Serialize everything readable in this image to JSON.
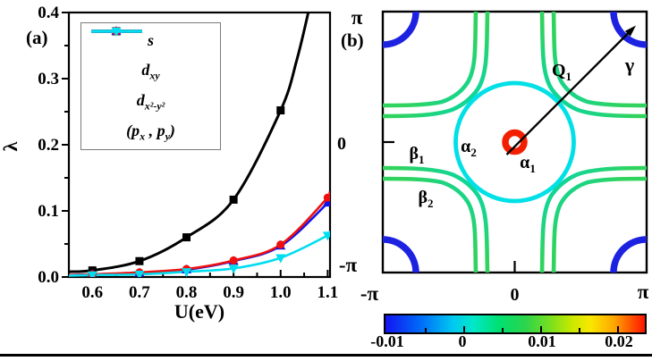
{
  "figure": {
    "panel_a": {
      "tag": "(a)",
      "x_axis_label": "U(eV)",
      "y_axis_label": "λ"
    },
    "panel_b": {
      "tag": "(b)",
      "y_tick_labels": {
        "top": "π",
        "center": "0",
        "bottom": "-π"
      },
      "x_tick_labels": {
        "left": "-π",
        "center": "0",
        "right": "π"
      },
      "annotations": {
        "alpha1": {
          "base": "α",
          "sub": "1"
        },
        "alpha2": {
          "base": "α",
          "sub": "2"
        },
        "beta1": {
          "base": "β",
          "sub": "1"
        },
        "beta2": {
          "base": "β",
          "sub": "2"
        },
        "q1": {
          "base": "Q",
          "sub": "1"
        },
        "gamma": "γ"
      },
      "colorbar": {
        "labels": [
          "-0.01",
          "0",
          "0.01",
          "0.02"
        ]
      }
    }
  },
  "chart_data": [
    {
      "type": "line",
      "title": "(a) pairing strength vs interaction",
      "xlabel": "U(eV)",
      "ylabel": "λ",
      "xlim": [
        0.55,
        1.105
      ],
      "ylim": [
        0,
        0.4
      ],
      "x_tick_values": [
        0.6,
        0.7,
        0.8,
        0.9,
        1.0,
        1.1
      ],
      "x_tick_labels": [
        "0.6",
        "0.7",
        "0.8",
        "0.9",
        "1.0",
        "1.1"
      ],
      "y_tick_values": [
        0,
        0.1,
        0.2,
        0.3,
        0.4
      ],
      "y_tick_labels": [
        "0.0",
        "0.1",
        "0.2",
        "0.3",
        "0.4"
      ],
      "x_minor_ticks": [
        0.65,
        0.75,
        0.85,
        0.95,
        1.05
      ],
      "y_minor_ticks": [
        0.05,
        0.15,
        0.25,
        0.35
      ],
      "grid": false,
      "legend_position": "top-left",
      "series": [
        {
          "name": "s",
          "color": "#000000",
          "marker": "square",
          "line_width": 3,
          "label_segments": [
            {
              "t": "s"
            }
          ],
          "points": [
            [
              0.6,
              0.01
            ],
            [
              0.7,
              0.024
            ],
            [
              0.8,
              0.06
            ],
            [
              0.9,
              0.117
            ],
            [
              1.0,
              0.252
            ]
          ],
          "lead_in": [
            [
              0.55,
              0.008
            ]
          ],
          "tail": [
            [
              1.035,
              0.33
            ],
            [
              1.062,
              0.41
            ]
          ],
          "note": "curve exceeds 0.4 near U=1.06"
        },
        {
          "name": "d_xy",
          "color": "#1212e8",
          "marker": "triangle-up",
          "line_width": 2.6,
          "label_segments": [
            {
              "t": "d"
            },
            {
              "t": "xy",
              "sub": true
            }
          ],
          "points": [
            [
              0.6,
              0.004
            ],
            [
              0.7,
              0.006
            ],
            [
              0.8,
              0.011
            ],
            [
              0.9,
              0.024
            ],
            [
              1.0,
              0.047
            ],
            [
              1.1,
              0.112
            ]
          ],
          "lead_in": [
            [
              0.55,
              0.003
            ]
          ],
          "tail": [
            [
              1.104,
              0.119
            ]
          ]
        },
        {
          "name": "d_x2-y2",
          "color": "#ee1010",
          "marker": "circle",
          "line_width": 2.6,
          "label_segments": [
            {
              "t": "d"
            },
            {
              "t": "x²-y²",
              "sub": true
            }
          ],
          "points": [
            [
              0.6,
              0.004
            ],
            [
              0.7,
              0.007
            ],
            [
              0.8,
              0.012
            ],
            [
              0.9,
              0.025
            ],
            [
              1.0,
              0.049
            ],
            [
              1.1,
              0.12
            ]
          ],
          "lead_in": [
            [
              0.55,
              0.003
            ]
          ],
          "tail": [
            [
              1.104,
              0.128
            ]
          ]
        },
        {
          "name": "px_py",
          "color": "#00ddf0",
          "marker": "triangle-down",
          "line_width": 2.6,
          "label_segments": [
            {
              "t": "("
            },
            {
              "t": "p"
            },
            {
              "t": "x",
              "sub": true
            },
            {
              "t": " , "
            },
            {
              "t": "p"
            },
            {
              "t": "y",
              "sub": true
            },
            {
              "t": ")"
            }
          ],
          "points": [
            [
              0.6,
              0.003
            ],
            [
              0.7,
              0.004
            ],
            [
              0.8,
              0.008
            ],
            [
              0.9,
              0.013
            ],
            [
              1.0,
              0.029
            ],
            [
              1.1,
              0.063
            ]
          ],
          "lead_in": [
            [
              0.55,
              0.002
            ]
          ],
          "tail": [
            [
              1.104,
              0.068
            ]
          ]
        }
      ]
    },
    {
      "type": "heatmap",
      "subtype": "fermi-surface-contour-map",
      "title": "(b) Fermi surface colored by gap value",
      "x_tick_labels": [
        "-π",
        "0",
        "π"
      ],
      "y_tick_labels": [
        "-π",
        "0",
        "π"
      ],
      "xlim_label": [
        "-π",
        "π"
      ],
      "ylim_label": [
        "-π",
        "π"
      ],
      "colorbar": {
        "tick_labels": [
          "-0.01",
          "0",
          "0.01",
          "0.02"
        ],
        "min": -0.0105,
        "max": 0.0235,
        "colormap": "jet"
      },
      "contours": [
        {
          "name": "alpha1",
          "description": "small circle at zone center",
          "radius_over_pi": 0.08,
          "color_value": 0.021,
          "color": "#f22000"
        },
        {
          "name": "alpha2",
          "description": "large circle around zone center",
          "radius_over_pi": 0.45,
          "color_value": 0.0,
          "color": "#00e0e6"
        },
        {
          "name": "beta1",
          "description": "inner open sheet from zone-edge to zone-edge wrapping alpha2",
          "color_value": 0.005,
          "color": "#2fd35e"
        },
        {
          "name": "beta2",
          "description": "outer open sheet parallel to beta1",
          "color_value": 0.005,
          "color": "#2fd35e"
        },
        {
          "name": "gamma",
          "description": "quarter-circle pockets at the four zone corners",
          "radius_over_pi": 0.255,
          "color_value": -0.01,
          "color": "#1c22e0"
        }
      ],
      "arrow": {
        "from": "zone center (0,0)",
        "to": "zone corner (π,π)",
        "label": "Q1"
      }
    }
  ]
}
